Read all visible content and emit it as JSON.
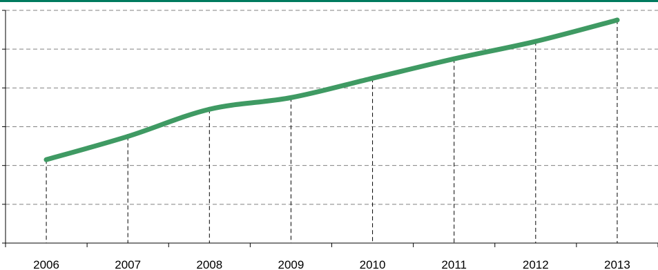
{
  "colors": {
    "top_rule": "#007a5e",
    "line": "#3f9a63",
    "gridline": "#808080",
    "axis": "#000000",
    "dropline": "#000000"
  },
  "chart_data": {
    "type": "line",
    "categories": [
      "2006",
      "2007",
      "2008",
      "2009",
      "2010",
      "2011",
      "2012",
      "2013"
    ],
    "values": [
      2.15,
      2.75,
      3.45,
      3.75,
      4.25,
      4.75,
      5.2,
      5.75
    ],
    "ylim": [
      0,
      6
    ],
    "grid": true,
    "gridline_style": "dashed",
    "drop_lines": true,
    "y_tick_labels_visible": false,
    "legend": "none"
  }
}
